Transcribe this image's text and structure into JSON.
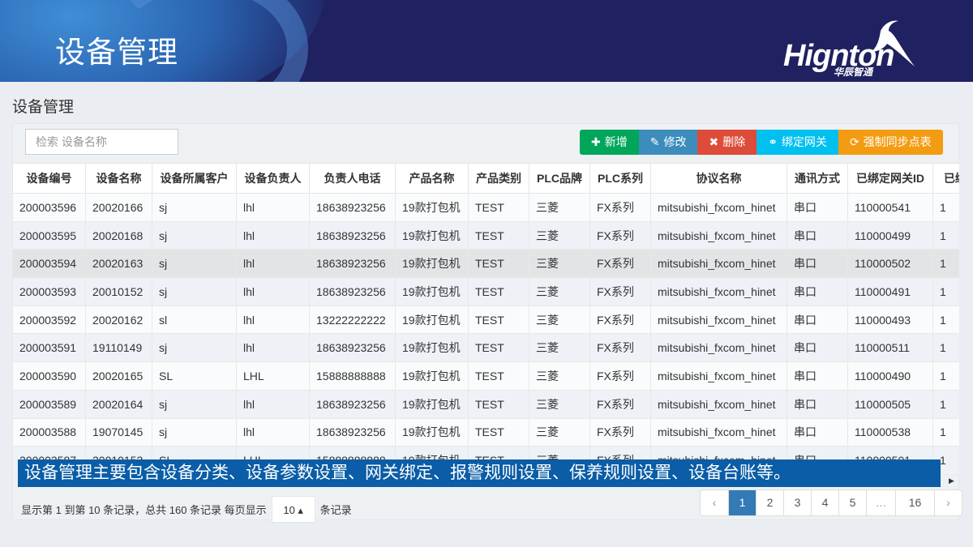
{
  "banner": {
    "title": "设备管理",
    "logo_text": "Hignton",
    "logo_sub": "华辰智通"
  },
  "page": {
    "title": "设备管理"
  },
  "search": {
    "placeholder": "检索 设备名称"
  },
  "toolbar": {
    "add": "新增",
    "edit": "修改",
    "delete": "删除",
    "bind": "绑定网关",
    "sync": "强制同步点表",
    "colors": {
      "add": "#00a65a",
      "edit": "#3c8dbc",
      "delete": "#dd4b39",
      "bind": "#00c0ef",
      "sync": "#f39c12"
    }
  },
  "table": {
    "headers": [
      "设备编号",
      "设备名称",
      "设备所属客户",
      "设备负责人",
      "负责人电话",
      "产品名称",
      "产品类别",
      "PLC品牌",
      "PLC系列",
      "协议名称",
      "通讯方式",
      "已绑定网关ID",
      "已绑"
    ],
    "highlighted_row": 2,
    "rows": [
      [
        "200003596",
        "20020166",
        "sj",
        "lhl",
        "18638923256",
        "19款打包机",
        "TEST",
        "三菱",
        "FX系列",
        "mitsubishi_fxcom_hinet",
        "串口",
        "110000541",
        "1"
      ],
      [
        "200003595",
        "20020168",
        "sj",
        "lhl",
        "18638923256",
        "19款打包机",
        "TEST",
        "三菱",
        "FX系列",
        "mitsubishi_fxcom_hinet",
        "串口",
        "110000499",
        "1"
      ],
      [
        "200003594",
        "20020163",
        "sj",
        "lhl",
        "18638923256",
        "19款打包机",
        "TEST",
        "三菱",
        "FX系列",
        "mitsubishi_fxcom_hinet",
        "串口",
        "110000502",
        "1"
      ],
      [
        "200003593",
        "20010152",
        "sj",
        "lhl",
        "18638923256",
        "19款打包机",
        "TEST",
        "三菱",
        "FX系列",
        "mitsubishi_fxcom_hinet",
        "串口",
        "110000491",
        "1"
      ],
      [
        "200003592",
        "20020162",
        "sl",
        "lhl",
        "13222222222",
        "19款打包机",
        "TEST",
        "三菱",
        "FX系列",
        "mitsubishi_fxcom_hinet",
        "串口",
        "110000493",
        "1"
      ],
      [
        "200003591",
        "19110149",
        "sj",
        "lhl",
        "18638923256",
        "19款打包机",
        "TEST",
        "三菱",
        "FX系列",
        "mitsubishi_fxcom_hinet",
        "串口",
        "110000511",
        "1"
      ],
      [
        "200003590",
        "20020165",
        "SL",
        "LHL",
        "15888888888",
        "19款打包机",
        "TEST",
        "三菱",
        "FX系列",
        "mitsubishi_fxcom_hinet",
        "串口",
        "110000490",
        "1"
      ],
      [
        "200003589",
        "20020164",
        "sj",
        "lhl",
        "18638923256",
        "19款打包机",
        "TEST",
        "三菱",
        "FX系列",
        "mitsubishi_fxcom_hinet",
        "串口",
        "110000505",
        "1"
      ],
      [
        "200003588",
        "19070145",
        "sj",
        "lhl",
        "18638923256",
        "19款打包机",
        "TEST",
        "三菱",
        "FX系列",
        "mitsubishi_fxcom_hinet",
        "串口",
        "110000538",
        "1"
      ],
      [
        "200003587",
        "20010153",
        "SL",
        "LHL",
        "15888888888",
        "19款打包机",
        "TEST",
        "三菱",
        "FX系列",
        "mitsubishi_fxcom_hinet",
        "串口",
        "110000501",
        "1"
      ]
    ]
  },
  "overlay": {
    "text": "设备管理主要包含设备分类、设备参数设置、网关绑定、报警规则设置、保养规则设置、设备台账等。"
  },
  "footer": {
    "info": "显示第 1 到第 10 条记录，总共 160 条记录 每页显示",
    "page_size": "10 ▴",
    "suffix": "条记录"
  },
  "pagination": {
    "prev": "‹",
    "pages": [
      "1",
      "2",
      "3",
      "4",
      "5",
      "…",
      "16"
    ],
    "active": "1",
    "next": "›"
  }
}
